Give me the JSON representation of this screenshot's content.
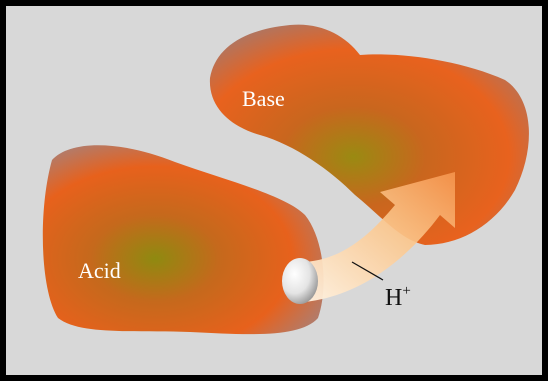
{
  "labels": {
    "base": "Base",
    "acid": "Acid",
    "proton": {
      "symbol": "H",
      "charge": "+"
    }
  }
}
